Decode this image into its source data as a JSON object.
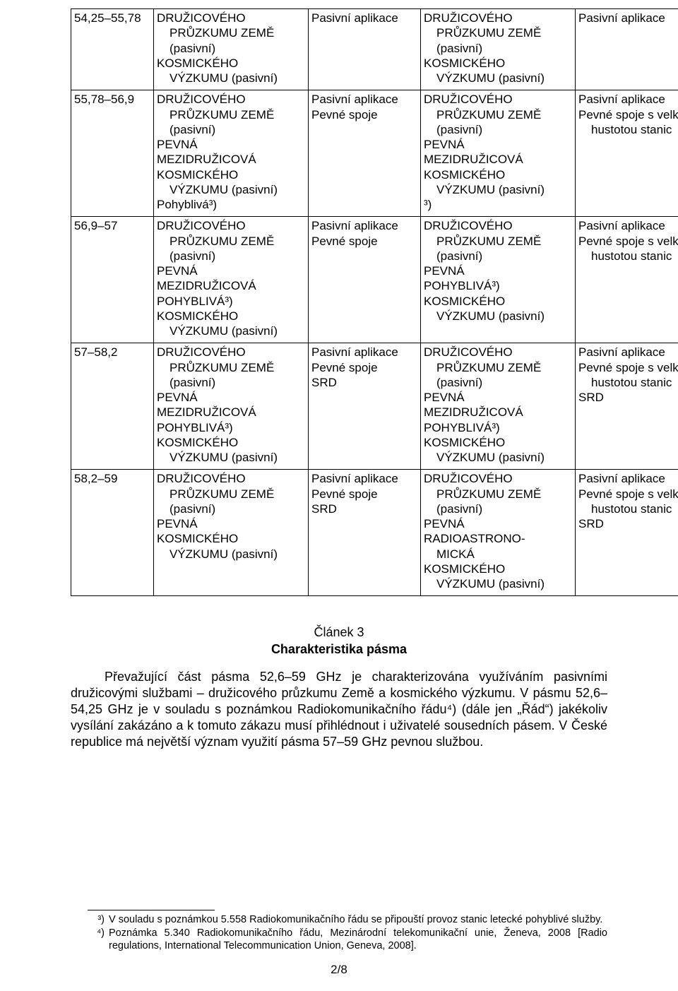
{
  "table": {
    "rows": [
      {
        "band": "54,25–55,78",
        "col1": [
          "DRUŽICOVÉHO",
          [
            "PRŮZKUMU ZEMĚ",
            1
          ],
          [
            "(pasivní)",
            1
          ],
          "KOSMICKÉHO",
          [
            "VÝZKUMU (pasivní)",
            1
          ]
        ],
        "col2": [
          "Pasivní aplikace"
        ],
        "col3": [
          "DRUŽICOVÉHO",
          [
            "PRŮZKUMU ZEMĚ",
            1
          ],
          [
            "(pasivní)",
            1
          ],
          "KOSMICKÉHO",
          [
            "VÝZKUMU (pasivní)",
            1
          ]
        ],
        "col4": [
          "Pasivní aplikace"
        ]
      },
      {
        "band": "55,78–56,9",
        "col1": [
          "DRUŽICOVÉHO",
          [
            "PRŮZKUMU ZEMĚ",
            1
          ],
          [
            "(pasivní)",
            1
          ],
          "PEVNÁ",
          "MEZIDRUŽICOVÁ",
          "KOSMICKÉHO",
          [
            "VÝZKUMU (pasivní)",
            1
          ],
          "Pohyblivá³)"
        ],
        "col2": [
          "Pasivní aplikace",
          "Pevné spoje"
        ],
        "col3": [
          "DRUŽICOVÉHO",
          [
            "PRŮZKUMU ZEMĚ",
            1
          ],
          [
            "(pasivní)",
            1
          ],
          "PEVNÁ",
          "MEZIDRUŽICOVÁ",
          "KOSMICKÉHO",
          [
            "VÝZKUMU (pasivní)",
            1
          ],
          "³)"
        ],
        "col4": [
          "Pasivní aplikace",
          "Pevné spoje s velkou",
          [
            "hustotou stanic",
            1
          ]
        ]
      },
      {
        "band": "56,9–57",
        "col1": [
          "DRUŽICOVÉHO",
          [
            "PRŮZKUMU ZEMĚ",
            1
          ],
          [
            "(pasivní)",
            1
          ],
          "PEVNÁ",
          "MEZIDRUŽICOVÁ",
          "POHYBLIVÁ³)",
          "KOSMICKÉHO",
          [
            "VÝZKUMU (pasivní)",
            1
          ]
        ],
        "col2": [
          "Pasivní aplikace",
          "Pevné spoje"
        ],
        "col3": [
          "DRUŽICOVÉHO",
          [
            "PRŮZKUMU ZEMĚ",
            1
          ],
          [
            "(pasivní)",
            1
          ],
          "PEVNÁ",
          "POHYBLIVÁ³)",
          "KOSMICKÉHO",
          [
            "VÝZKUMU (pasivní)",
            1
          ]
        ],
        "col4": [
          "Pasivní aplikace",
          "Pevné spoje s velkou",
          [
            "hustotou stanic",
            1
          ]
        ]
      },
      {
        "band": "57–58,2",
        "col1": [
          "DRUŽICOVÉHO",
          [
            "PRŮZKUMU ZEMĚ",
            1
          ],
          [
            "(pasivní)",
            1
          ],
          "PEVNÁ",
          "MEZIDRUŽICOVÁ",
          "POHYBLIVÁ³)",
          "KOSMICKÉHO",
          [
            "VÝZKUMU (pasivní)",
            1
          ]
        ],
        "col2": [
          "Pasivní aplikace",
          "Pevné spoje",
          "SRD"
        ],
        "col3": [
          "DRUŽICOVÉHO",
          [
            "PRŮZKUMU ZEMĚ",
            1
          ],
          [
            "(pasivní)",
            1
          ],
          "PEVNÁ",
          "MEZIDRUŽICOVÁ",
          "POHYBLIVÁ³)",
          "KOSMICKÉHO",
          [
            "VÝZKUMU (pasivní)",
            1
          ]
        ],
        "col4": [
          "Pasivní aplikace",
          "Pevné spoje s velkou",
          [
            "hustotou stanic",
            1
          ],
          "SRD"
        ]
      },
      {
        "band": "58,2–59",
        "col1": [
          "DRUŽICOVÉHO",
          [
            "PRŮZKUMU ZEMĚ",
            1
          ],
          [
            "(pasivní)",
            1
          ],
          "PEVNÁ",
          "KOSMICKÉHO",
          [
            "VÝZKUMU (pasivní)",
            1
          ]
        ],
        "col2": [
          "Pasivní aplikace",
          "Pevné spoje",
          "SRD"
        ],
        "col3": [
          "DRUŽICOVÉHO",
          [
            "PRŮZKUMU ZEMĚ",
            1
          ],
          [
            "(pasivní)",
            1
          ],
          "PEVNÁ",
          "RADIOASTRONO-",
          [
            "MICKÁ",
            1
          ],
          "KOSMICKÉHO",
          [
            "VÝZKUMU (pasivní)",
            1
          ]
        ],
        "col4": [
          "Pasivní aplikace",
          "Pevné spoje s velkou",
          [
            "hustotou stanic",
            1
          ],
          "SRD"
        ]
      }
    ]
  },
  "article": {
    "num": "Článek 3",
    "title": "Charakteristika pásma",
    "body": "Převažující část pásma 52,6–59 GHz je charakterizována využíváním pasivními družicovými službami – družicového průzkumu Země a kosmického výzkumu. V pásmu 52,6–54,25 GHz je v souladu s poznámkou Radiokomunikačního řádu⁴) (dále jen „Řád“) jakékoliv vysílání zakázáno a k tomuto zákazu musí přihlédnout i uživatelé sousedních pásem. V České republice má největší význam využití pásma 57–59 GHz pevnou službou."
  },
  "footnotes": [
    {
      "num": "³)",
      "text": "V souladu s poznámkou 5.558 Radiokomunikačního řádu se připouští provoz stanic letecké pohyblivé služby."
    },
    {
      "num": "⁴)",
      "text": "Poznámka 5.340 Radiokomunikačního řádu, Mezinárodní telekomunikační unie, Ženeva, 2008 [Radio regulations, International Telecommunication Union, Geneva, 2008]."
    }
  ],
  "pagenum": "2/8"
}
